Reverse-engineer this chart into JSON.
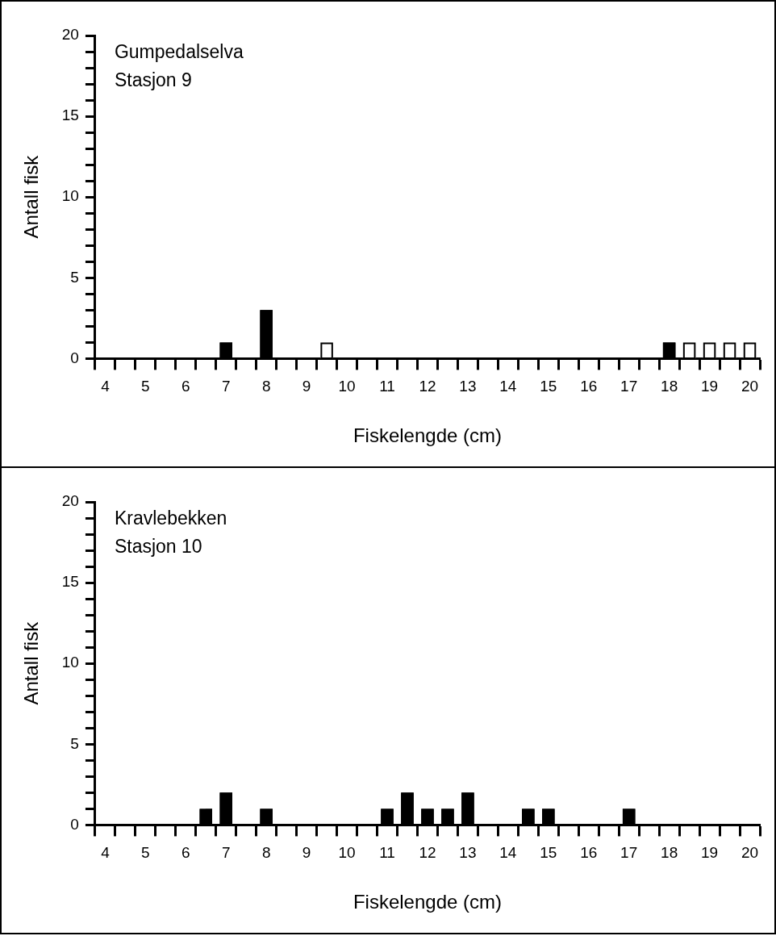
{
  "chart_data": [
    {
      "type": "bar",
      "title": "Gumpedalselva",
      "subtitle": "Stasjon 9",
      "xlabel": "Fiskelengde (cm)",
      "ylabel": "Antall fisk",
      "categories": [
        "4",
        null,
        "5",
        null,
        "6",
        null,
        "7",
        null,
        "8",
        null,
        "9",
        null,
        "10",
        null,
        "11",
        null,
        "12",
        null,
        "13",
        null,
        "14",
        null,
        "15",
        null,
        "16",
        null,
        "17",
        null,
        "18",
        null,
        "19",
        null,
        "20"
      ],
      "series": [
        {
          "color": "#000000",
          "values": [
            null,
            null,
            null,
            null,
            null,
            null,
            1,
            null,
            3,
            null,
            null,
            null,
            null,
            null,
            null,
            null,
            null,
            null,
            null,
            null,
            null,
            null,
            null,
            null,
            null,
            null,
            null,
            null,
            1,
            null,
            null,
            null,
            null
          ]
        },
        {
          "color": "#ffffff",
          "values": [
            null,
            null,
            null,
            null,
            null,
            null,
            null,
            null,
            null,
            null,
            null,
            1,
            null,
            null,
            null,
            null,
            null,
            null,
            null,
            null,
            null,
            null,
            null,
            null,
            null,
            null,
            null,
            null,
            null,
            1,
            1,
            1,
            1
          ]
        }
      ],
      "ylim": [
        0,
        20
      ],
      "yticks": [
        0,
        {
          "value": 1,
          "label": null
        },
        {
          "value": 2,
          "label": null
        },
        {
          "value": 3,
          "label": null
        },
        {
          "value": 4,
          "label": null
        },
        5,
        {
          "value": 6,
          "label": null
        },
        {
          "value": 7,
          "label": null
        },
        {
          "value": 8,
          "label": null
        },
        {
          "value": 9,
          "label": null
        },
        10,
        {
          "value": 11,
          "label": null
        },
        {
          "value": 12,
          "label": null
        },
        {
          "value": 13,
          "label": null
        },
        {
          "value": 14,
          "label": null
        },
        15,
        {
          "value": 16,
          "label": null
        },
        {
          "value": 17,
          "label": null
        },
        {
          "value": 18,
          "label": null
        },
        {
          "value": 19,
          "label": null
        },
        20
      ],
      "grid": false,
      "legend": false
    },
    {
      "type": "bar",
      "title": "Kravlebekken",
      "subtitle": "Stasjon 10",
      "xlabel": "Fiskelengde (cm)",
      "ylabel": "Antall fisk",
      "categories": [
        "4",
        null,
        "5",
        null,
        "6",
        null,
        "7",
        null,
        "8",
        null,
        "9",
        null,
        "10",
        null,
        "11",
        null,
        "12",
        null,
        "13",
        null,
        "14",
        null,
        "15",
        null,
        "16",
        null,
        "17",
        null,
        "18",
        null,
        "19",
        null,
        "20"
      ],
      "series": [
        {
          "color": "#000000",
          "values": [
            null,
            null,
            null,
            null,
            null,
            1,
            2,
            null,
            1,
            null,
            null,
            null,
            null,
            null,
            1,
            2,
            1,
            1,
            2,
            null,
            null,
            1,
            1,
            null,
            null,
            null,
            1,
            null,
            null,
            null,
            null,
            null,
            null
          ]
        }
      ],
      "ylim": [
        0,
        20
      ],
      "yticks": [
        0,
        {
          "value": 1,
          "label": null
        },
        {
          "value": 2,
          "label": null
        },
        {
          "value": 3,
          "label": null
        },
        {
          "value": 4,
          "label": null
        },
        5,
        {
          "value": 6,
          "label": null
        },
        {
          "value": 7,
          "label": null
        },
        {
          "value": 8,
          "label": null
        },
        {
          "value": 9,
          "label": null
        },
        10,
        {
          "value": 11,
          "label": null
        },
        {
          "value": 12,
          "label": null
        },
        {
          "value": 13,
          "label": null
        },
        {
          "value": 14,
          "label": null
        },
        15,
        {
          "value": 16,
          "label": null
        },
        {
          "value": 17,
          "label": null
        },
        {
          "value": 18,
          "label": null
        },
        {
          "value": 19,
          "label": null
        },
        20
      ],
      "grid": false,
      "legend": false
    }
  ]
}
